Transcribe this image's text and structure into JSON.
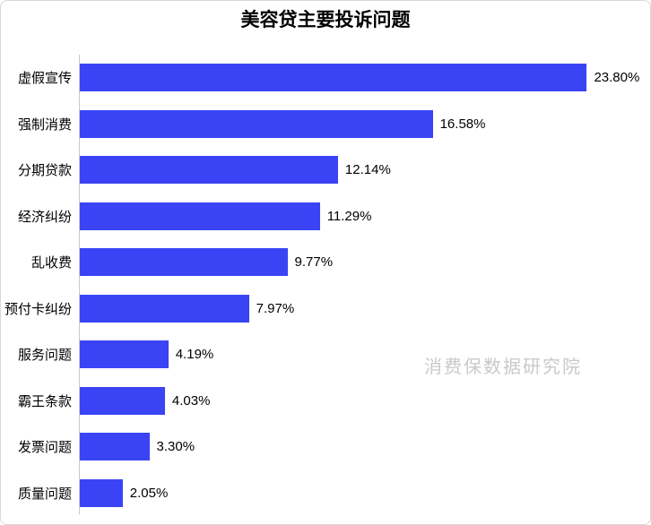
{
  "card": {
    "title": "美容贷主要投诉问题",
    "watermark": "消费保数据研究院"
  },
  "chart_data": {
    "type": "bar",
    "orientation": "horizontal",
    "title": "美容贷主要投诉问题",
    "categories": [
      "虚假宣传",
      "强制消费",
      "分期贷款",
      "经济纠纷",
      "乱收费",
      "预付卡纠纷",
      "服务问题",
      "霸王条款",
      "发票问题",
      "质量问题"
    ],
    "values": [
      23.8,
      16.58,
      12.14,
      11.29,
      9.77,
      7.97,
      4.19,
      4.03,
      3.3,
      2.05
    ],
    "value_labels": [
      "23.80%",
      "16.58%",
      "12.14%",
      "11.29%",
      "9.77%",
      "7.97%",
      "4.19%",
      "4.03%",
      "3.30%",
      "2.05%"
    ],
    "unit": "%",
    "xlim": [
      0,
      26.7
    ],
    "grid": false,
    "legend": null,
    "bar_color": "#3a44f5",
    "axis_color": "#c9c9c9",
    "watermark": "消费保数据研究院",
    "watermark_color": "#c9c9c9"
  }
}
